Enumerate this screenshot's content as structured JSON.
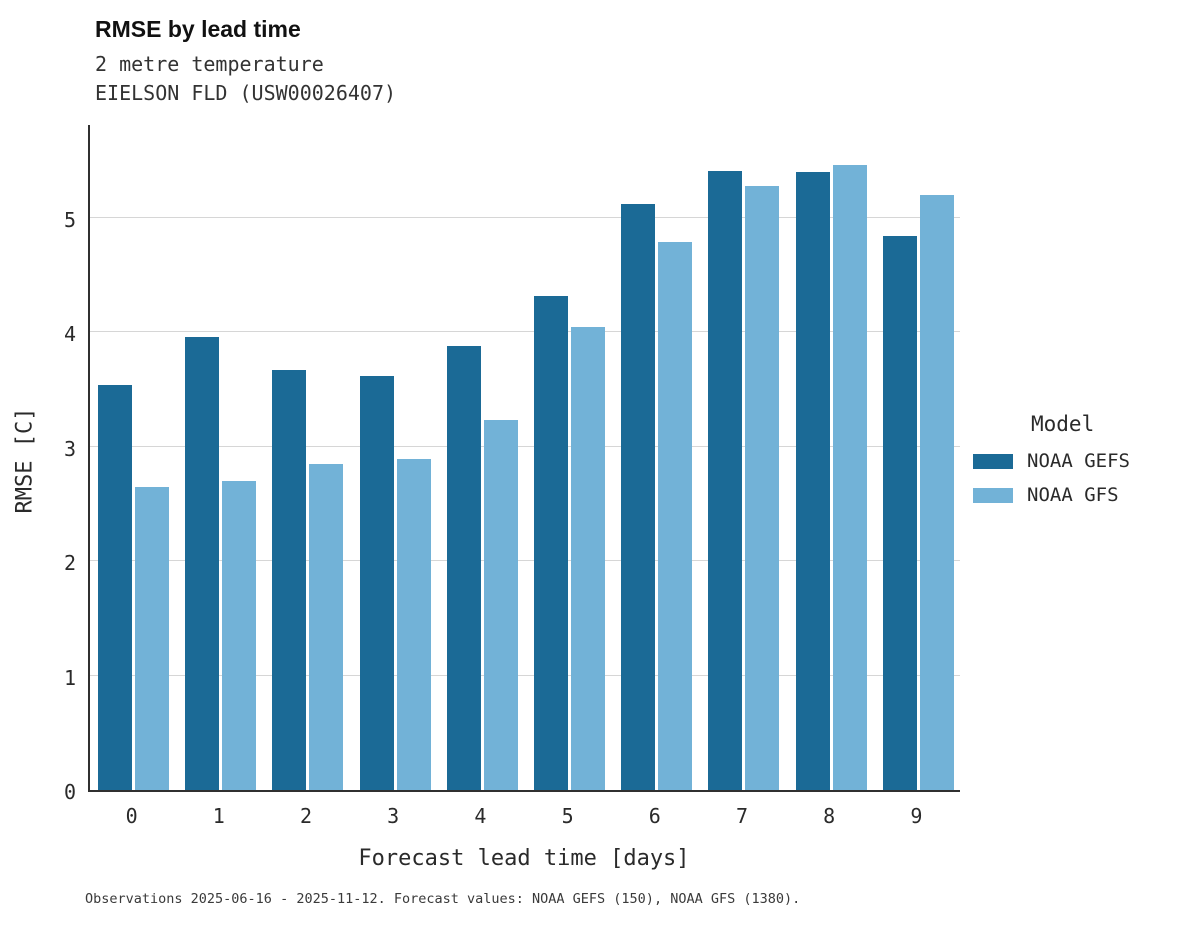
{
  "title": "RMSE by lead time",
  "subtitle_line1": "2 metre temperature",
  "subtitle_line2": "EIELSON FLD (USW00026407)",
  "caption": "Observations 2025-06-16 - 2025-11-12. Forecast values: NOAA GEFS (150), NOAA GFS (1380).",
  "legend": {
    "title": "Model",
    "entries": [
      {
        "label": "NOAA GEFS",
        "color": "#1b6a96"
      },
      {
        "label": "NOAA GFS",
        "color": "#72b2d7"
      }
    ]
  },
  "chart_data": {
    "type": "bar",
    "title": "RMSE by lead time",
    "subtitle": "2 metre temperature — EIELSON FLD (USW00026407)",
    "xlabel": "Forecast lead time [days]",
    "ylabel": "RMSE [C]",
    "categories": [
      "0",
      "1",
      "2",
      "3",
      "4",
      "5",
      "6",
      "7",
      "8",
      "9"
    ],
    "series": [
      {
        "name": "NOAA GEFS",
        "color": "#1b6a96",
        "values": [
          3.54,
          3.96,
          3.67,
          3.62,
          3.88,
          4.32,
          5.12,
          5.41,
          5.4,
          4.84
        ]
      },
      {
        "name": "NOAA GFS",
        "color": "#72b2d7",
        "values": [
          2.65,
          2.7,
          2.85,
          2.89,
          3.23,
          4.05,
          4.79,
          5.28,
          5.46,
          5.2
        ]
      }
    ],
    "ylim": [
      0,
      5.83
    ],
    "yticks": [
      0,
      1,
      2,
      3,
      4,
      5
    ],
    "grid": true,
    "legend_position": "right"
  }
}
